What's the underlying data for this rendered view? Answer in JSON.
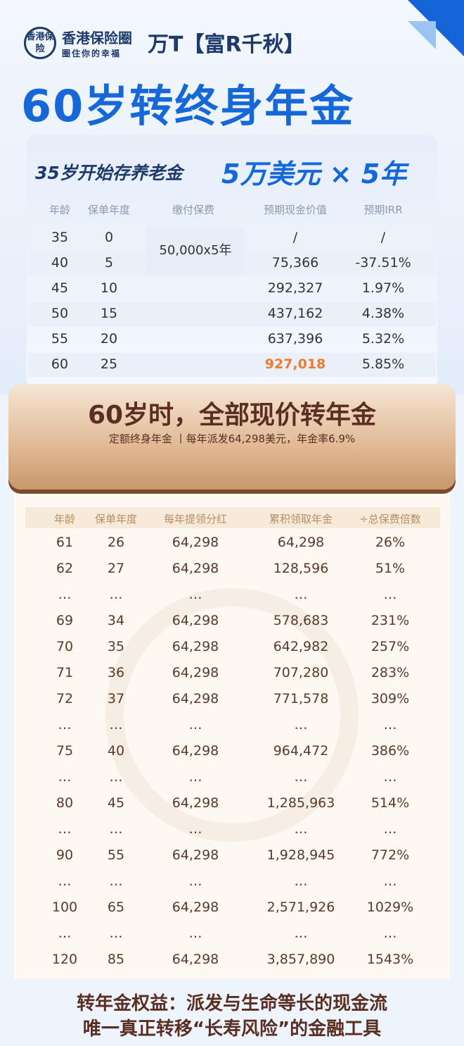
{
  "header": {
    "logo_text": "香港保险",
    "brand_name": "香港保险圈",
    "brand_slogan": "圈住你的幸福",
    "product": "万T【富R千秋】",
    "headline": "60岁转终身年金"
  },
  "plan": {
    "subtitle": "35岁开始存养老金",
    "amount": "5万美元 × 5年",
    "columns": [
      "年龄",
      "保单年度",
      "缴付保费",
      "预期现金价值",
      "预期IRR"
    ],
    "premium": "50,000x5年",
    "rows": [
      [
        "35",
        "0",
        "/",
        "/"
      ],
      [
        "40",
        "5",
        "75,366",
        "-37.51%"
      ],
      [
        "45",
        "10",
        "292,327",
        "1.97%"
      ],
      [
        "50",
        "15",
        "437,162",
        "4.38%"
      ],
      [
        "55",
        "20",
        "637,396",
        "5.32%"
      ],
      [
        "60",
        "25",
        "927,018",
        "5.85%"
      ]
    ],
    "highlight_color": "#f07a2e"
  },
  "annuity": {
    "title": "60岁时，全部现价转年金",
    "subtitle": "定额终身年金 丨每年派发64,298美元，年金率6.9%",
    "columns": [
      "年龄",
      "保单年度",
      "每年提领分红",
      "累积领取年金",
      "÷总保费倍数"
    ],
    "rows": [
      [
        "61",
        "26",
        "64,298",
        "64,298",
        "26%"
      ],
      [
        "62",
        "27",
        "64,298",
        "128,596",
        "51%"
      ],
      [
        "…",
        "…",
        "…",
        "…",
        "…"
      ],
      [
        "69",
        "34",
        "64,298",
        "578,683",
        "231%"
      ],
      [
        "70",
        "35",
        "64,298",
        "642,982",
        "257%"
      ],
      [
        "71",
        "36",
        "64,298",
        "707,280",
        "283%"
      ],
      [
        "72",
        "37",
        "64,298",
        "771,578",
        "309%"
      ],
      [
        "…",
        "…",
        "…",
        "…",
        "…"
      ],
      [
        "75",
        "40",
        "64,298",
        "964,472",
        "386%"
      ],
      [
        "…",
        "…",
        "…",
        "…",
        "…"
      ],
      [
        "80",
        "45",
        "64,298",
        "1,285,963",
        "514%"
      ],
      [
        "…",
        "…",
        "…",
        "…",
        "…"
      ],
      [
        "90",
        "55",
        "64,298",
        "1,928,945",
        "772%"
      ],
      [
        "…",
        "…",
        "…",
        "…",
        "…"
      ],
      [
        "100",
        "65",
        "64,298",
        "2,571,926",
        "1029%"
      ],
      [
        "…",
        "…",
        "…",
        "…",
        "…"
      ],
      [
        "120",
        "85",
        "64,298",
        "3,857,890",
        "1543%"
      ]
    ]
  },
  "footer": {
    "line1": "转年金权益：派发与生命等长的现金流",
    "line2": "唯一真正转移“长寿风险”的金融工具"
  }
}
